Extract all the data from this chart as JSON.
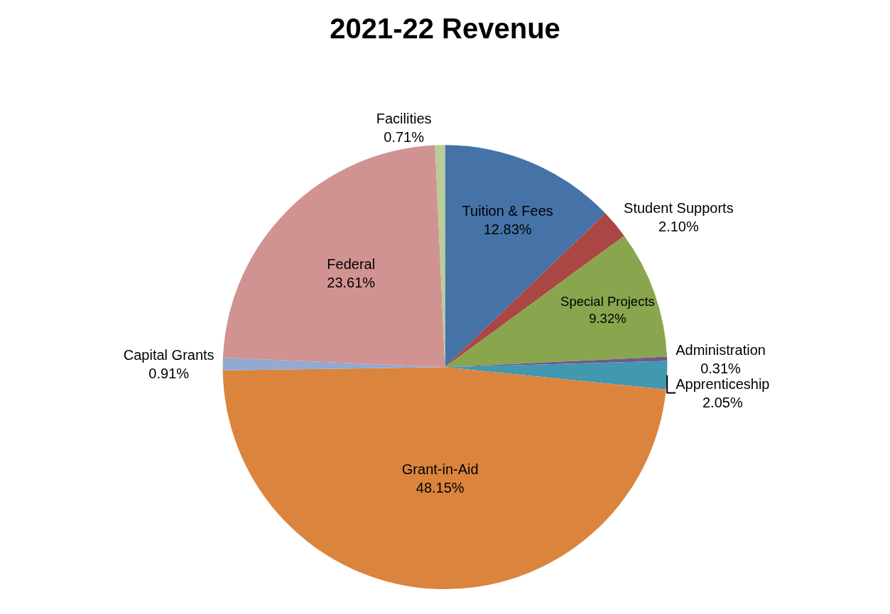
{
  "chart_data": {
    "type": "pie",
    "title": "2021-22 Revenue",
    "categories": [
      "Tuition & Fees",
      "Student Supports",
      "Special Projects",
      "Administration",
      "Apprenticeship",
      "Grant-in-Aid",
      "Capital Grants",
      "Federal",
      "Facilities"
    ],
    "values": [
      12.83,
      2.1,
      9.32,
      0.31,
      2.05,
      48.15,
      0.91,
      23.61,
      0.71
    ],
    "value_labels": [
      "12.83%",
      "2.10%",
      "9.32%",
      "0.31%",
      "2.05%",
      "48.15%",
      "0.91%",
      "23.61%",
      "0.71%"
    ],
    "colors": [
      "#4573a7",
      "#aa4644",
      "#89a54e",
      "#71588f",
      "#4198af",
      "#db843d",
      "#93a9cf",
      "#d09392",
      "#b9cd96"
    ],
    "legend": false
  }
}
